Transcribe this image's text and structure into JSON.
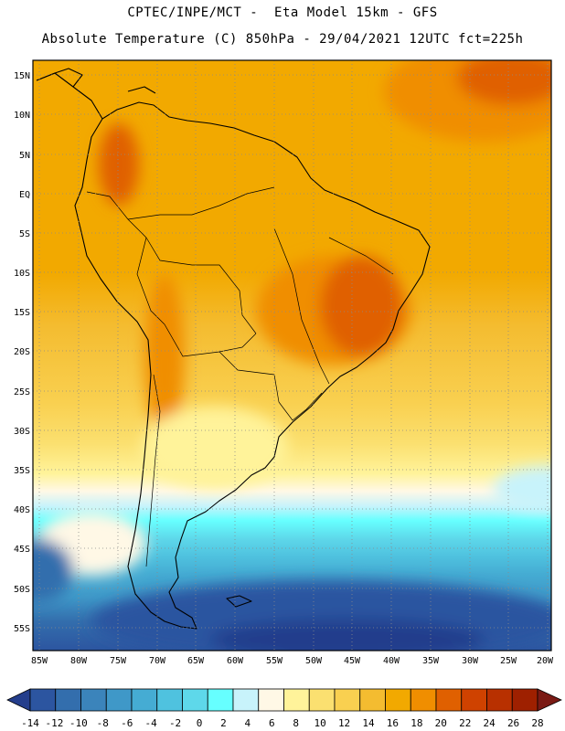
{
  "header": {
    "line1": "CPTEC/INPE/MCT -  Eta Model 15km - GFS",
    "line2": "Absolute Temperature (C) 850hPa - 29/04/2021 12UTC fct=225h"
  },
  "axes": {
    "lat_labels": [
      "15N",
      "10N",
      "5N",
      "EQ",
      "5S",
      "10S",
      "15S",
      "20S",
      "25S",
      "30S",
      "35S",
      "40S",
      "45S",
      "50S",
      "55S"
    ],
    "lon_labels": [
      "85W",
      "80W",
      "75W",
      "70W",
      "65W",
      "60W",
      "55W",
      "50W",
      "45W",
      "40W",
      "35W",
      "30W",
      "25W",
      "20W"
    ]
  },
  "colorbar": {
    "labels": [
      "-14",
      "-12",
      "-10",
      "-8",
      "-6",
      "-4",
      "-2",
      "0",
      "2",
      "4",
      "6",
      "8",
      "10",
      "12",
      "14",
      "16",
      "18",
      "20",
      "22",
      "24",
      "26",
      "28"
    ],
    "colors": [
      "#243e8c",
      "#2c55a0",
      "#336ead",
      "#3b84bb",
      "#3f98c8",
      "#45acd3",
      "#4fc2df",
      "#5ed8ea",
      "#66ffff",
      "#c8f3fb",
      "#fff8e6",
      "#fff39a",
      "#fbe070",
      "#f9d050",
      "#f4bc30",
      "#f2a900",
      "#f08e00",
      "#e06000",
      "#cf4200",
      "#b83000",
      "#9e2000",
      "#7a1a14"
    ]
  }
}
